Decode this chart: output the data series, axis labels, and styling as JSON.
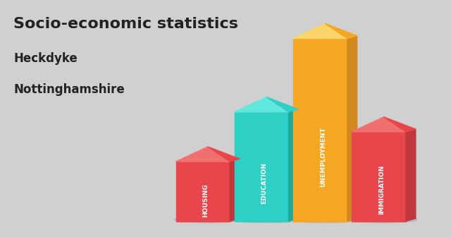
{
  "title_line1": "Socio-economic statistics",
  "title_line2": "Heckdyke",
  "title_line3": "Nottinghamshire",
  "categories": [
    "HOUSING",
    "EDUCATION",
    "UNEMPLOYMENT",
    "IMMIGRATION"
  ],
  "values": [
    0.3,
    0.55,
    0.92,
    0.45
  ],
  "bar_colors": [
    "#e8464a",
    "#2ecfc4",
    "#f5a623",
    "#e8464a"
  ],
  "bar_dark_colors": [
    "#c0383b",
    "#1fa898",
    "#d4891e",
    "#c0383b"
  ],
  "bar_tip_colors": [
    "#f07070",
    "#60e8de",
    "#fcd56a",
    "#f07070"
  ],
  "background_color": "#d0d0d0",
  "title_color": "#222222",
  "label_color": "#ffffff",
  "bar_width": 0.12,
  "bar_positions": [
    0.45,
    0.58,
    0.71,
    0.84
  ]
}
